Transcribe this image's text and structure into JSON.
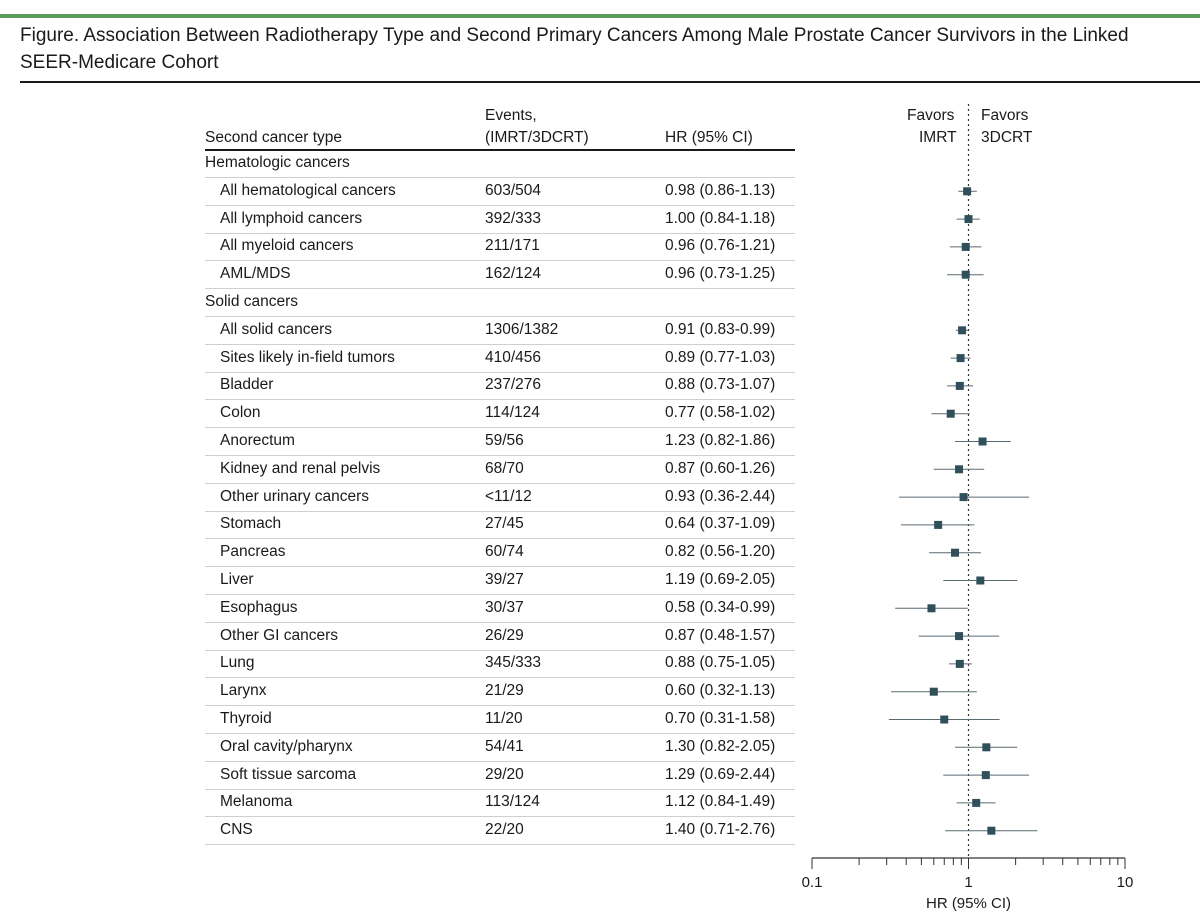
{
  "figure": {
    "title": "Figure. Association Between Radiotherapy Type and Second Primary Cancers Among Male Prostate Cancer Survivors in the Linked SEER-Medicare Cohort"
  },
  "table": {
    "col_type": "Second cancer type",
    "col_events_1": "Events,",
    "col_events_2": "(IMRT/3DCRT)",
    "col_hr": "HR (95% CI)",
    "rows": [
      {
        "name": "Hematologic cancers",
        "events": "",
        "hr_text": "",
        "group": true
      },
      {
        "name": "All hematological cancers",
        "events": "603/504",
        "hr_text": "0.98 (0.86-1.13)"
      },
      {
        "name": "All lymphoid cancers",
        "events": "392/333",
        "hr_text": "1.00 (0.84-1.18)"
      },
      {
        "name": "All myeloid cancers",
        "events": "211/171",
        "hr_text": "0.96 (0.76-1.21)"
      },
      {
        "name": "AML/MDS",
        "events": "162/124",
        "hr_text": "0.96 (0.73-1.25)"
      },
      {
        "name": "Solid cancers",
        "events": "",
        "hr_text": "",
        "group": true
      },
      {
        "name": "All solid cancers",
        "events": "1306/1382",
        "hr_text": "0.91 (0.83-0.99)"
      },
      {
        "name": "Sites likely in-field tumors",
        "events": "410/456",
        "hr_text": "0.89 (0.77-1.03)"
      },
      {
        "name": "Bladder",
        "events": "237/276",
        "hr_text": "0.88 (0.73-1.07)"
      },
      {
        "name": "Colon",
        "events": "114/124",
        "hr_text": "0.77 (0.58-1.02)"
      },
      {
        "name": "Anorectum",
        "events": "59/56",
        "hr_text": "1.23 (0.82-1.86)"
      },
      {
        "name": "Kidney and renal pelvis",
        "events": "68/70",
        "hr_text": "0.87 (0.60-1.26)"
      },
      {
        "name": "Other urinary cancers",
        "events": "<11/12",
        "hr_text": "0.93 (0.36-2.44)"
      },
      {
        "name": "Stomach",
        "events": "27/45",
        "hr_text": "0.64 (0.37-1.09)"
      },
      {
        "name": "Pancreas",
        "events": "60/74",
        "hr_text": "0.82 (0.56-1.20)"
      },
      {
        "name": "Liver",
        "events": "39/27",
        "hr_text": "1.19 (0.69-2.05)"
      },
      {
        "name": "Esophagus",
        "events": "30/37",
        "hr_text": "0.58 (0.34-0.99)"
      },
      {
        "name": "Other GI cancers",
        "events": "26/29",
        "hr_text": "0.87 (0.48-1.57)"
      },
      {
        "name": "Lung",
        "events": "345/333",
        "hr_text": "0.88 (0.75-1.05)"
      },
      {
        "name": "Larynx",
        "events": "21/29",
        "hr_text": "0.60 (0.32-1.13)"
      },
      {
        "name": "Thyroid",
        "events": "11/20",
        "hr_text": "0.70 (0.31-1.58)"
      },
      {
        "name": "Oral cavity/pharynx",
        "events": "54/41",
        "hr_text": "1.30 (0.82-2.05)"
      },
      {
        "name": "Soft tissue sarcoma",
        "events": "29/20",
        "hr_text": "1.29 (0.69-2.44)"
      },
      {
        "name": "Melanoma",
        "events": "113/124",
        "hr_text": "1.12 (0.84-1.49)"
      },
      {
        "name": "CNS",
        "events": "22/20",
        "hr_text": "1.40 (0.71-2.76)"
      }
    ]
  },
  "chart_data": {
    "type": "scatter",
    "subtype": "forest-plot",
    "xscale": "log",
    "xlim": [
      0.1,
      10
    ],
    "xticks": [
      "0.1",
      "1",
      "10"
    ],
    "xlabel": "HR (95% CI)",
    "reference_line": 1,
    "left_label_1": "Favors",
    "left_label_2": "IMRT",
    "right_label_1": "Favors",
    "right_label_2": "3DCRT",
    "points": [
      {
        "label": "All hematological cancers",
        "hr": 0.98,
        "lo": 0.86,
        "hi": 1.13
      },
      {
        "label": "All lymphoid cancers",
        "hr": 1.0,
        "lo": 0.84,
        "hi": 1.18
      },
      {
        "label": "All myeloid cancers",
        "hr": 0.96,
        "lo": 0.76,
        "hi": 1.21
      },
      {
        "label": "AML/MDS",
        "hr": 0.96,
        "lo": 0.73,
        "hi": 1.25
      },
      {
        "label": "All solid cancers",
        "hr": 0.91,
        "lo": 0.83,
        "hi": 0.99
      },
      {
        "label": "Sites likely in-field tumors",
        "hr": 0.89,
        "lo": 0.77,
        "hi": 1.03
      },
      {
        "label": "Bladder",
        "hr": 0.88,
        "lo": 0.73,
        "hi": 1.07
      },
      {
        "label": "Colon",
        "hr": 0.77,
        "lo": 0.58,
        "hi": 1.02
      },
      {
        "label": "Anorectum",
        "hr": 1.23,
        "lo": 0.82,
        "hi": 1.86
      },
      {
        "label": "Kidney and renal pelvis",
        "hr": 0.87,
        "lo": 0.6,
        "hi": 1.26
      },
      {
        "label": "Other urinary cancers",
        "hr": 0.93,
        "lo": 0.36,
        "hi": 2.44
      },
      {
        "label": "Stomach",
        "hr": 0.64,
        "lo": 0.37,
        "hi": 1.09
      },
      {
        "label": "Pancreas",
        "hr": 0.82,
        "lo": 0.56,
        "hi": 1.2
      },
      {
        "label": "Liver",
        "hr": 1.19,
        "lo": 0.69,
        "hi": 2.05
      },
      {
        "label": "Esophagus",
        "hr": 0.58,
        "lo": 0.34,
        "hi": 0.99
      },
      {
        "label": "Other GI cancers",
        "hr": 0.87,
        "lo": 0.48,
        "hi": 1.57
      },
      {
        "label": "Lung",
        "hr": 0.88,
        "lo": 0.75,
        "hi": 1.05
      },
      {
        "label": "Larynx",
        "hr": 0.6,
        "lo": 0.32,
        "hi": 1.13
      },
      {
        "label": "Thyroid",
        "hr": 0.7,
        "lo": 0.31,
        "hi": 1.58
      },
      {
        "label": "Oral cavity/pharynx",
        "hr": 1.3,
        "lo": 0.82,
        "hi": 2.05
      },
      {
        "label": "Soft tissue sarcoma",
        "hr": 1.29,
        "lo": 0.69,
        "hi": 2.44
      },
      {
        "label": "Melanoma",
        "hr": 1.12,
        "lo": 0.84,
        "hi": 1.49
      },
      {
        "label": "CNS",
        "hr": 1.4,
        "lo": 0.71,
        "hi": 2.76
      }
    ]
  },
  "colors": {
    "accent_bar": "#5b9a58",
    "marker": "#2f4f5a",
    "ci_line": "#5a6a70",
    "row_rule": "#cfcfcf"
  }
}
